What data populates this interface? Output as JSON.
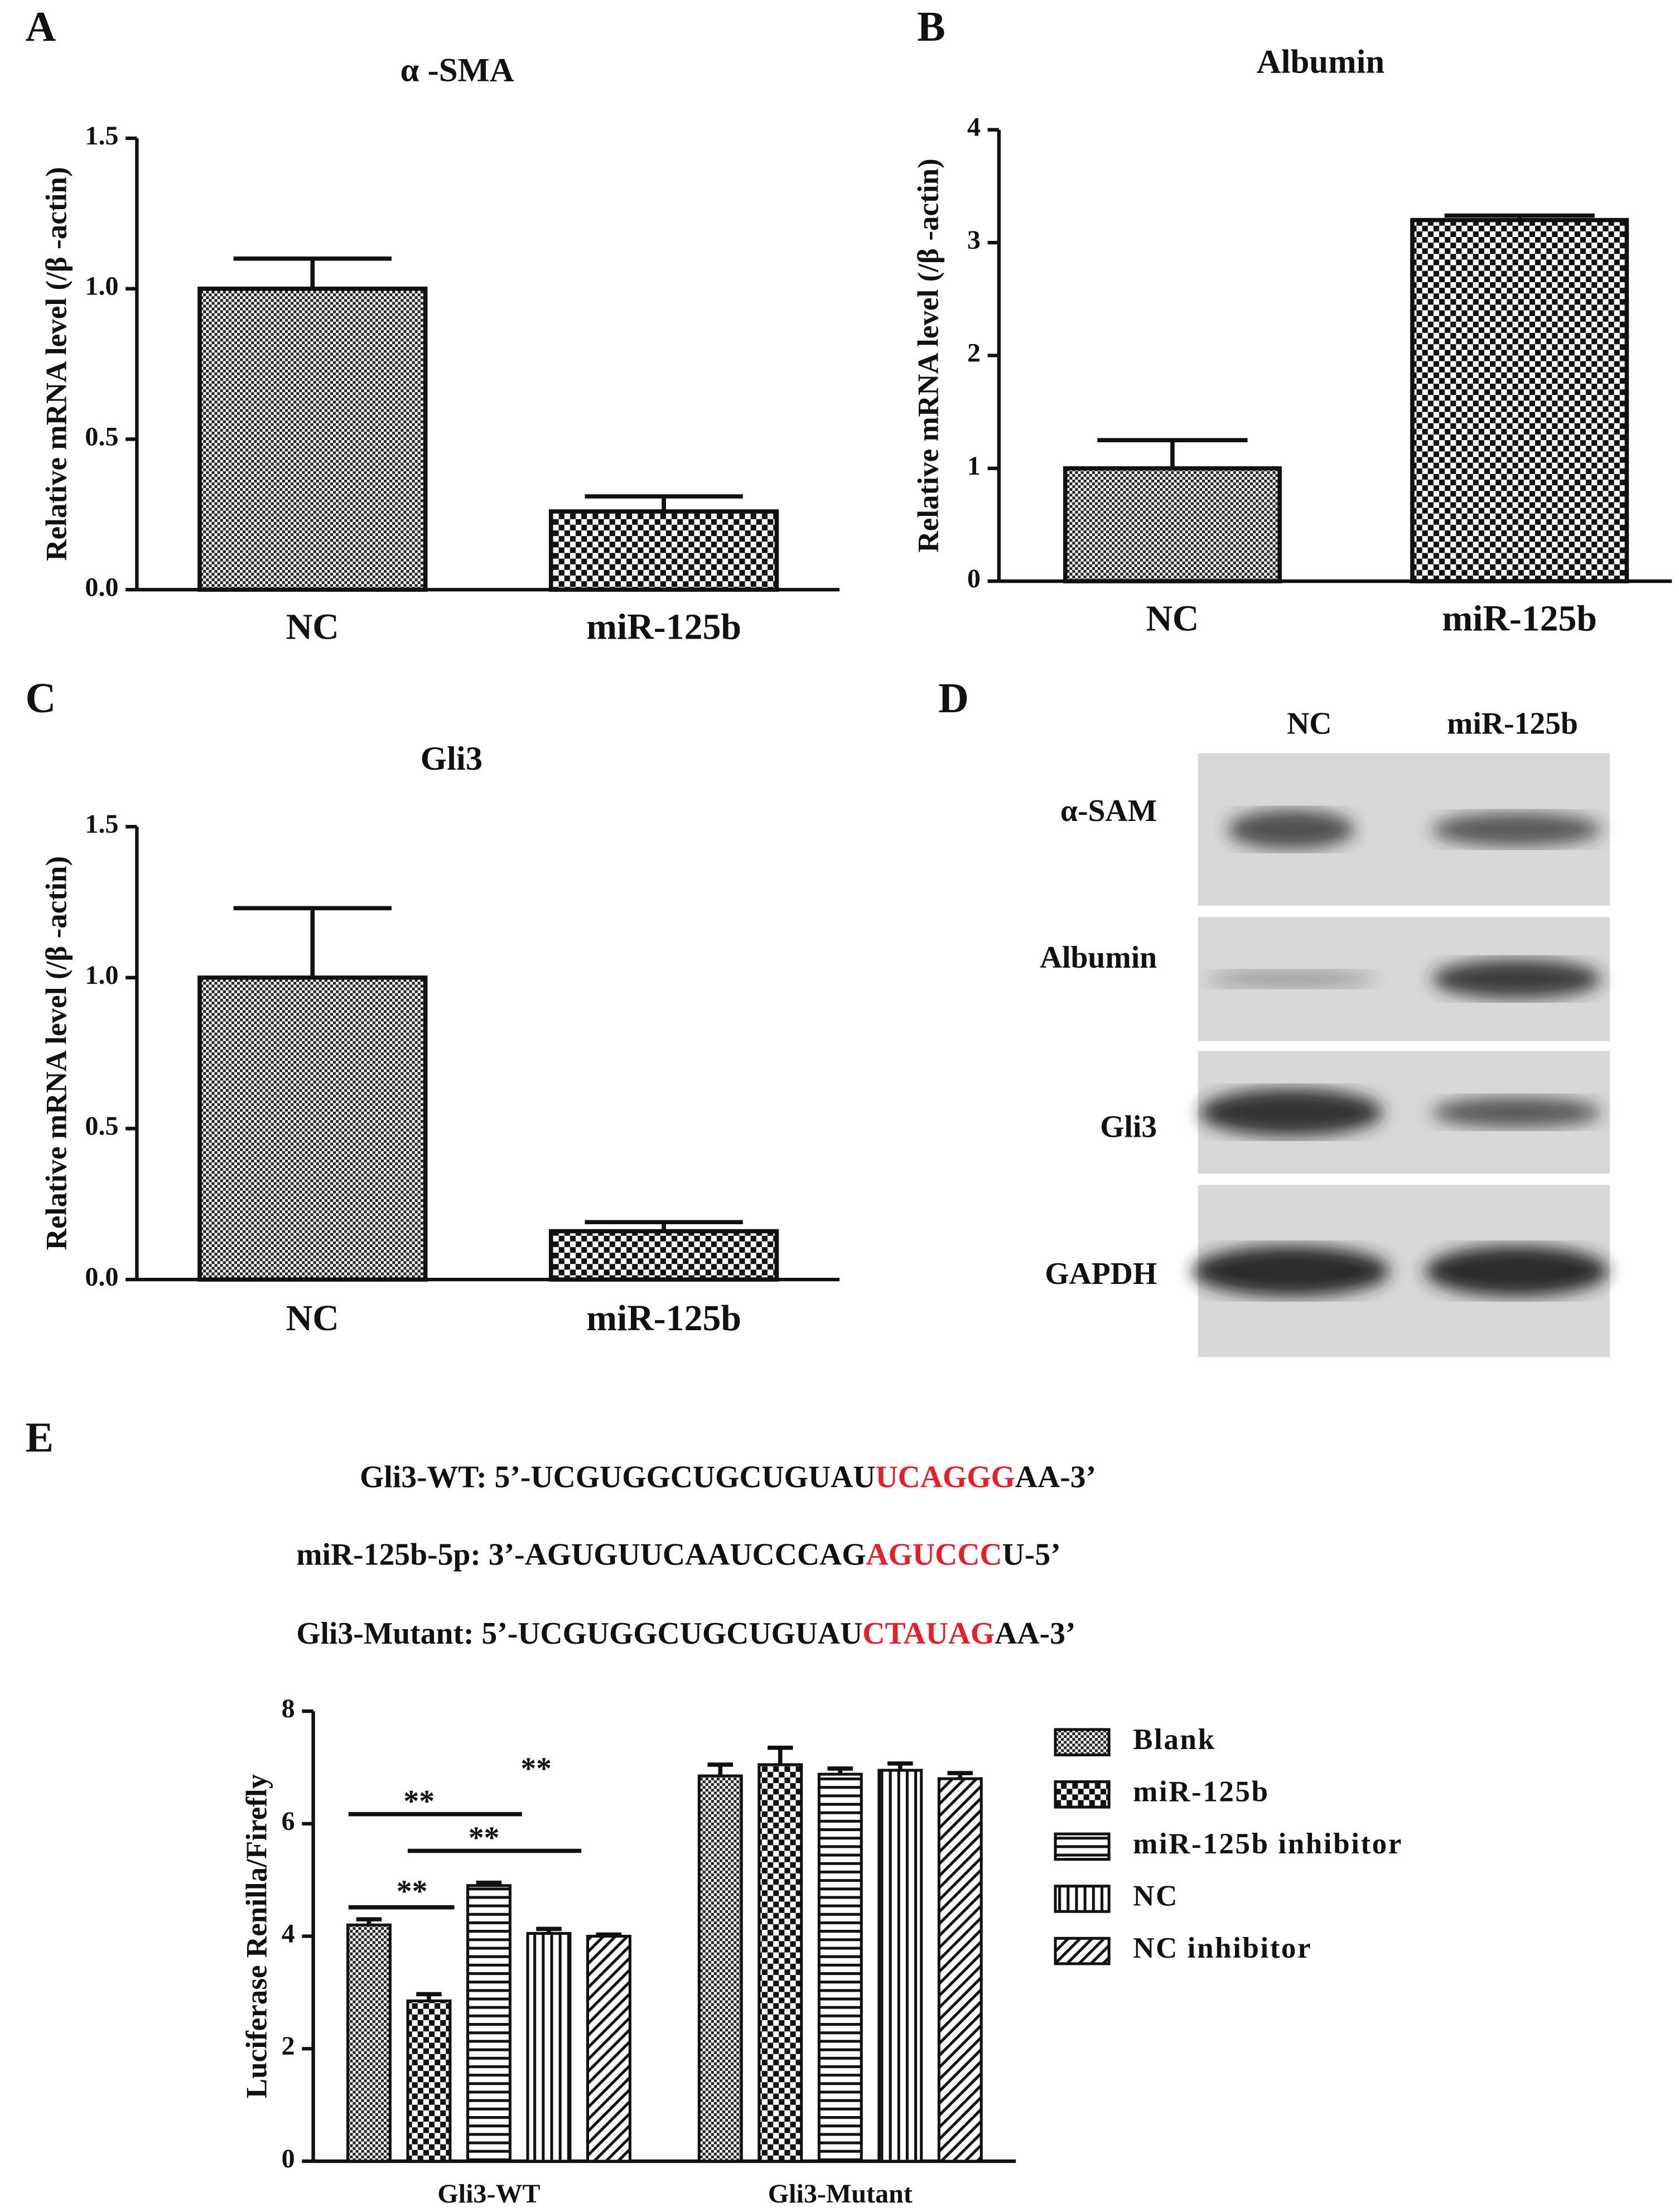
{
  "panels": [
    "A",
    "B",
    "C",
    "D",
    "E"
  ],
  "chart_data": [
    {
      "type": "bar",
      "title": "α -SMA",
      "y_label": "Relative mRNA level (/β -actin)",
      "categories": [
        "NC",
        "miR-125b"
      ],
      "values": [
        1.0,
        0.26
      ],
      "errors": [
        0.1,
        0.05
      ],
      "patterns": [
        "checker-fine",
        "checker-coarse"
      ],
      "ylim": [
        0,
        1.5
      ],
      "yticks": [
        {
          "value": 0,
          "label": "0.0"
        },
        0.5,
        {
          "value": 1,
          "label": "1.0"
        },
        1.5
      ]
    },
    {
      "type": "bar",
      "title": "Albumin",
      "y_label": "Relative mRNA level (/β -actin)",
      "categories": [
        "NC",
        "miR-125b"
      ],
      "values": [
        1.0,
        3.2
      ],
      "errors": [
        0.25,
        0.04
      ],
      "patterns": [
        "checker-fine",
        "checker-coarse"
      ],
      "ylim": [
        0,
        4
      ],
      "yticks": [
        0,
        1,
        2,
        3,
        4
      ]
    },
    {
      "type": "bar",
      "title": "Gli3",
      "y_label": "Relative mRNA level (/β -actin)",
      "categories": [
        "NC",
        "miR-125b"
      ],
      "values": [
        1.0,
        0.16
      ],
      "errors": [
        0.23,
        0.03
      ],
      "patterns": [
        "checker-fine",
        "checker-coarse"
      ],
      "ylim": [
        0,
        1.5
      ],
      "yticks": [
        {
          "value": 0,
          "label": "0.0"
        },
        0.5,
        {
          "value": 1,
          "label": "1.0"
        },
        1.5
      ]
    },
    {
      "type": "grouped_bar",
      "y_label": "Luciferase Renilla/Firefly",
      "categories": [
        "Gli3-WT",
        "Gli3-Mutant"
      ],
      "series": [
        {
          "name": "Blank",
          "pattern": "checker-fine",
          "values": [
            4.2,
            6.85
          ],
          "errors": [
            0.1,
            0.2
          ]
        },
        {
          "name": "miR-125b",
          "pattern": "checker-coarse",
          "values": [
            2.85,
            7.05
          ],
          "errors": [
            0.12,
            0.3
          ]
        },
        {
          "name": "miR-125b inhibitor",
          "pattern": "hstripe",
          "values": [
            4.9,
            6.88
          ],
          "errors": [
            0.05,
            0.1
          ]
        },
        {
          "name": "NC",
          "pattern": "vstripe",
          "values": [
            4.05,
            6.95
          ],
          "errors": [
            0.08,
            0.12
          ]
        },
        {
          "name": "NC inhibitor",
          "pattern": "diagonal",
          "values": [
            4.0,
            6.8
          ],
          "errors": [
            0.03,
            0.1
          ]
        }
      ],
      "ylim": [
        0,
        8
      ],
      "yticks": [
        0,
        2,
        4,
        6,
        8
      ],
      "legend": "right",
      "annotations": [
        "**",
        "**",
        "**",
        "**"
      ]
    }
  ],
  "blot": {
    "lanes": [
      "NC",
      "miR-125b"
    ],
    "rows": [
      "α-SAM",
      "Albumin",
      "Gli3",
      "GAPDH"
    ]
  },
  "sequences": [
    {
      "prefix": "Gli3-WT: 5’-UCGUGGCUGCUGUAU",
      "highlight": "UCAGGG",
      "suffix": "AA-3’"
    },
    {
      "prefix": "miR-125b-5p: 3’-AGUGUUCAAUCCCAG",
      "highlight": "AGUCCC",
      "suffix": "U-5’"
    },
    {
      "prefix": "Gli3-Mutant: 5’-UCGUGGCUGCUGUAU",
      "highlight": "CTAUAG",
      "suffix": "AA-3’"
    }
  ]
}
